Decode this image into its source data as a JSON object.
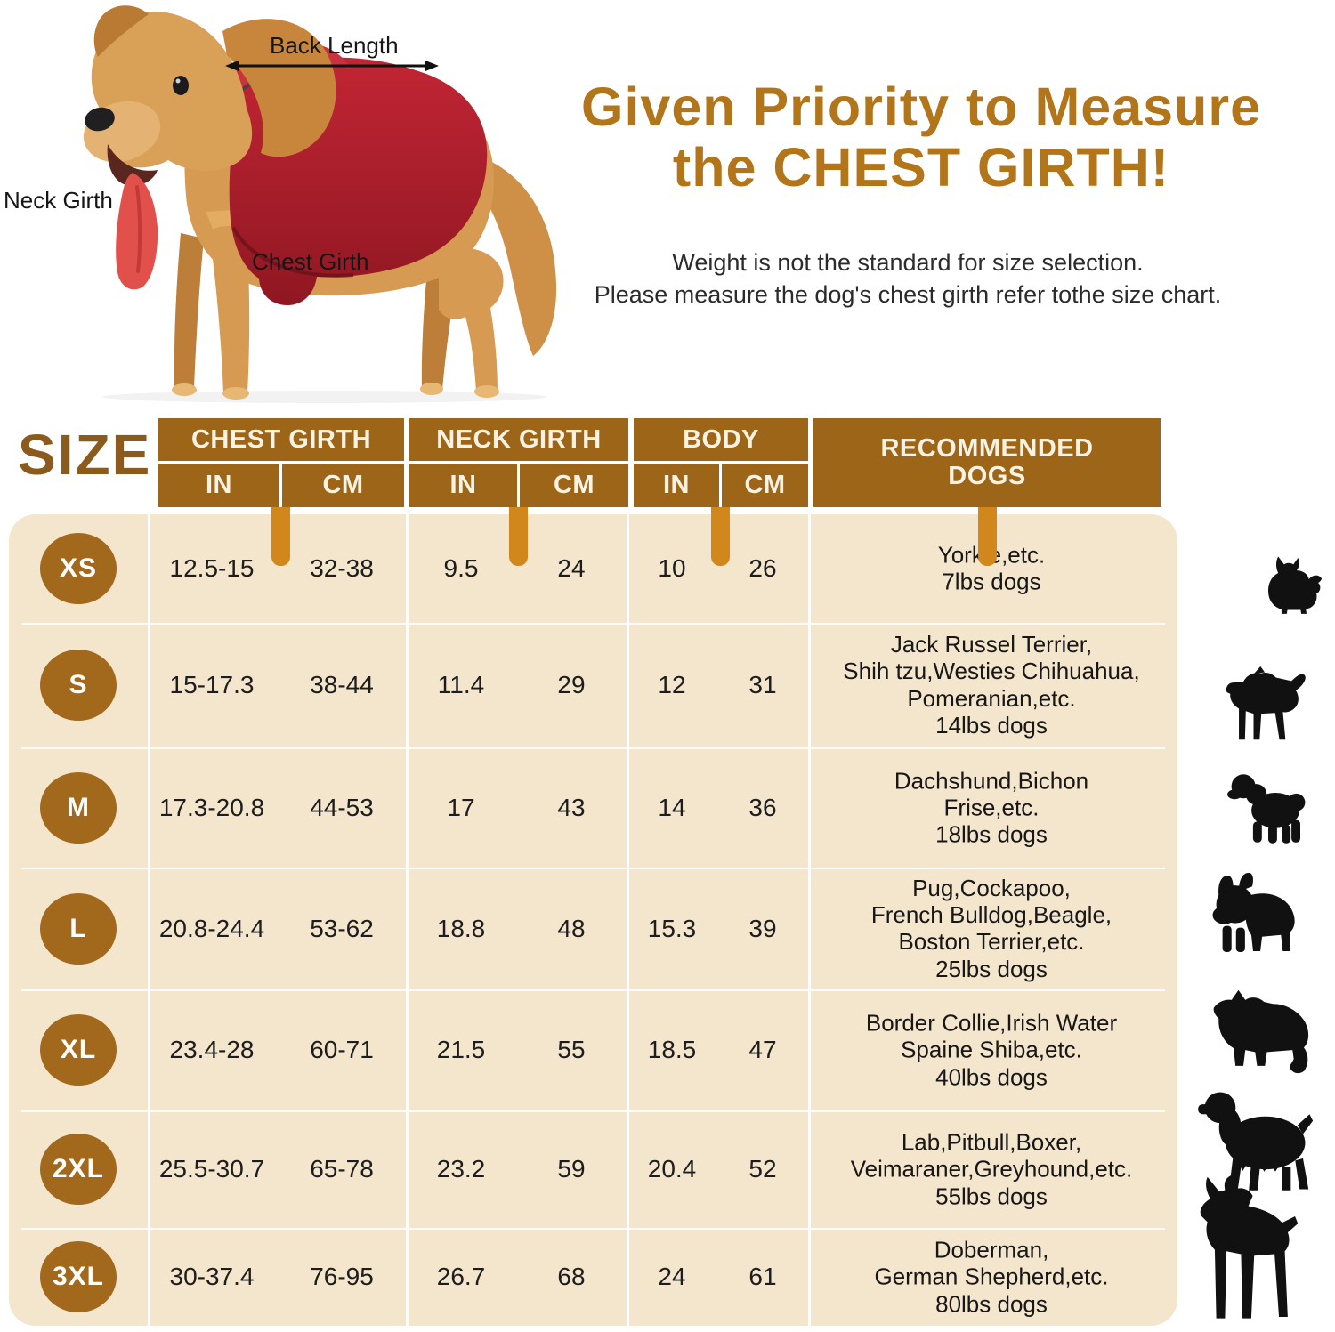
{
  "diagram": {
    "back_length_label": "Back Length",
    "neck_girth_label": "Neck Girth",
    "chest_girth_label": "Chest Girth"
  },
  "headline": {
    "line1": "Given Priority to Measure",
    "line2": "the CHEST GIRTH!"
  },
  "note": {
    "line1": "Weight is not the standard for size selection.",
    "line2": "Please measure the dog's chest girth refer tothe size chart."
  },
  "table": {
    "size_header": "SIZE",
    "col_groups": [
      {
        "label": "CHEST GIRTH",
        "unit_in": "IN",
        "unit_cm": "CM"
      },
      {
        "label": "NECK GIRTH",
        "unit_in": "IN",
        "unit_cm": "CM"
      },
      {
        "label": "BODY",
        "unit_in": "IN",
        "unit_cm": "CM"
      }
    ],
    "recommended_line1": "RECOMMENDED",
    "recommended_line2": "DOGS",
    "rows": [
      {
        "size": "XS",
        "chest_in": "12.5-15",
        "chest_cm": "32-38",
        "neck_in": "9.5",
        "neck_cm": "24",
        "body_in": "10",
        "body_cm": "26",
        "dogs": [
          "Yorkie,etc.",
          "7lbs dogs"
        ],
        "silhouette": "yorkie"
      },
      {
        "size": "S",
        "chest_in": "15-17.3",
        "chest_cm": "38-44",
        "neck_in": "11.4",
        "neck_cm": "29",
        "body_in": "12",
        "body_cm": "31",
        "dogs": [
          "Jack Russel Terrier,",
          "Shih tzu,Westies Chihuahua,",
          "Pomeranian,etc.",
          "14lbs dogs"
        ],
        "silhouette": "jack-russell"
      },
      {
        "size": "M",
        "chest_in": "17.3-20.8",
        "chest_cm": "44-53",
        "neck_in": "17",
        "neck_cm": "43",
        "body_in": "14",
        "body_cm": "36",
        "dogs": [
          "Dachshund,Bichon",
          "Frise,etc.",
          "18lbs dogs"
        ],
        "silhouette": "bichon"
      },
      {
        "size": "L",
        "chest_in": "20.8-24.4",
        "chest_cm": "53-62",
        "neck_in": "18.8",
        "neck_cm": "48",
        "body_in": "15.3",
        "body_cm": "39",
        "dogs": [
          "Pug,Cockapoo,",
          "French Bulldog,Beagle,",
          "Boston Terrier,etc.",
          "25lbs dogs"
        ],
        "silhouette": "french-bulldog"
      },
      {
        "size": "XL",
        "chest_in": "23.4-28",
        "chest_cm": "60-71",
        "neck_in": "21.5",
        "neck_cm": "55",
        "body_in": "18.5",
        "body_cm": "47",
        "dogs": [
          "Border Collie,Irish Water",
          "Spaine Shiba,etc.",
          "40lbs dogs"
        ],
        "silhouette": "border-collie"
      },
      {
        "size": "2XL",
        "chest_in": "25.5-30.7",
        "chest_cm": "65-78",
        "neck_in": "23.2",
        "neck_cm": "59",
        "body_in": "20.4",
        "body_cm": "52",
        "dogs": [
          "Lab,Pitbull,Boxer,",
          "Veimaraner,Greyhound,etc.",
          "55lbs dogs"
        ],
        "silhouette": "spaniel"
      },
      {
        "size": "3XL",
        "chest_in": "30-37.4",
        "chest_cm": "76-95",
        "neck_in": "26.7",
        "neck_cm": "68",
        "body_in": "24",
        "body_cm": "61",
        "dogs": [
          "Doberman,",
          "German Shepherd,etc.",
          "80lbs dogs"
        ],
        "silhouette": "doberman"
      }
    ]
  },
  "colors": {
    "header_brown": "#9C6518",
    "badge_brown": "#A2681B",
    "panel_beige": "#F4E5CD",
    "tab_orange": "#D1871C",
    "title_brown": "#B2751A",
    "size_label_brown": "#8A5B1D",
    "coat_red": "#B01E2E",
    "fur_gold": "#D79A52",
    "silhouette_black": "#111111",
    "text_dark": "#1D1D1D"
  }
}
